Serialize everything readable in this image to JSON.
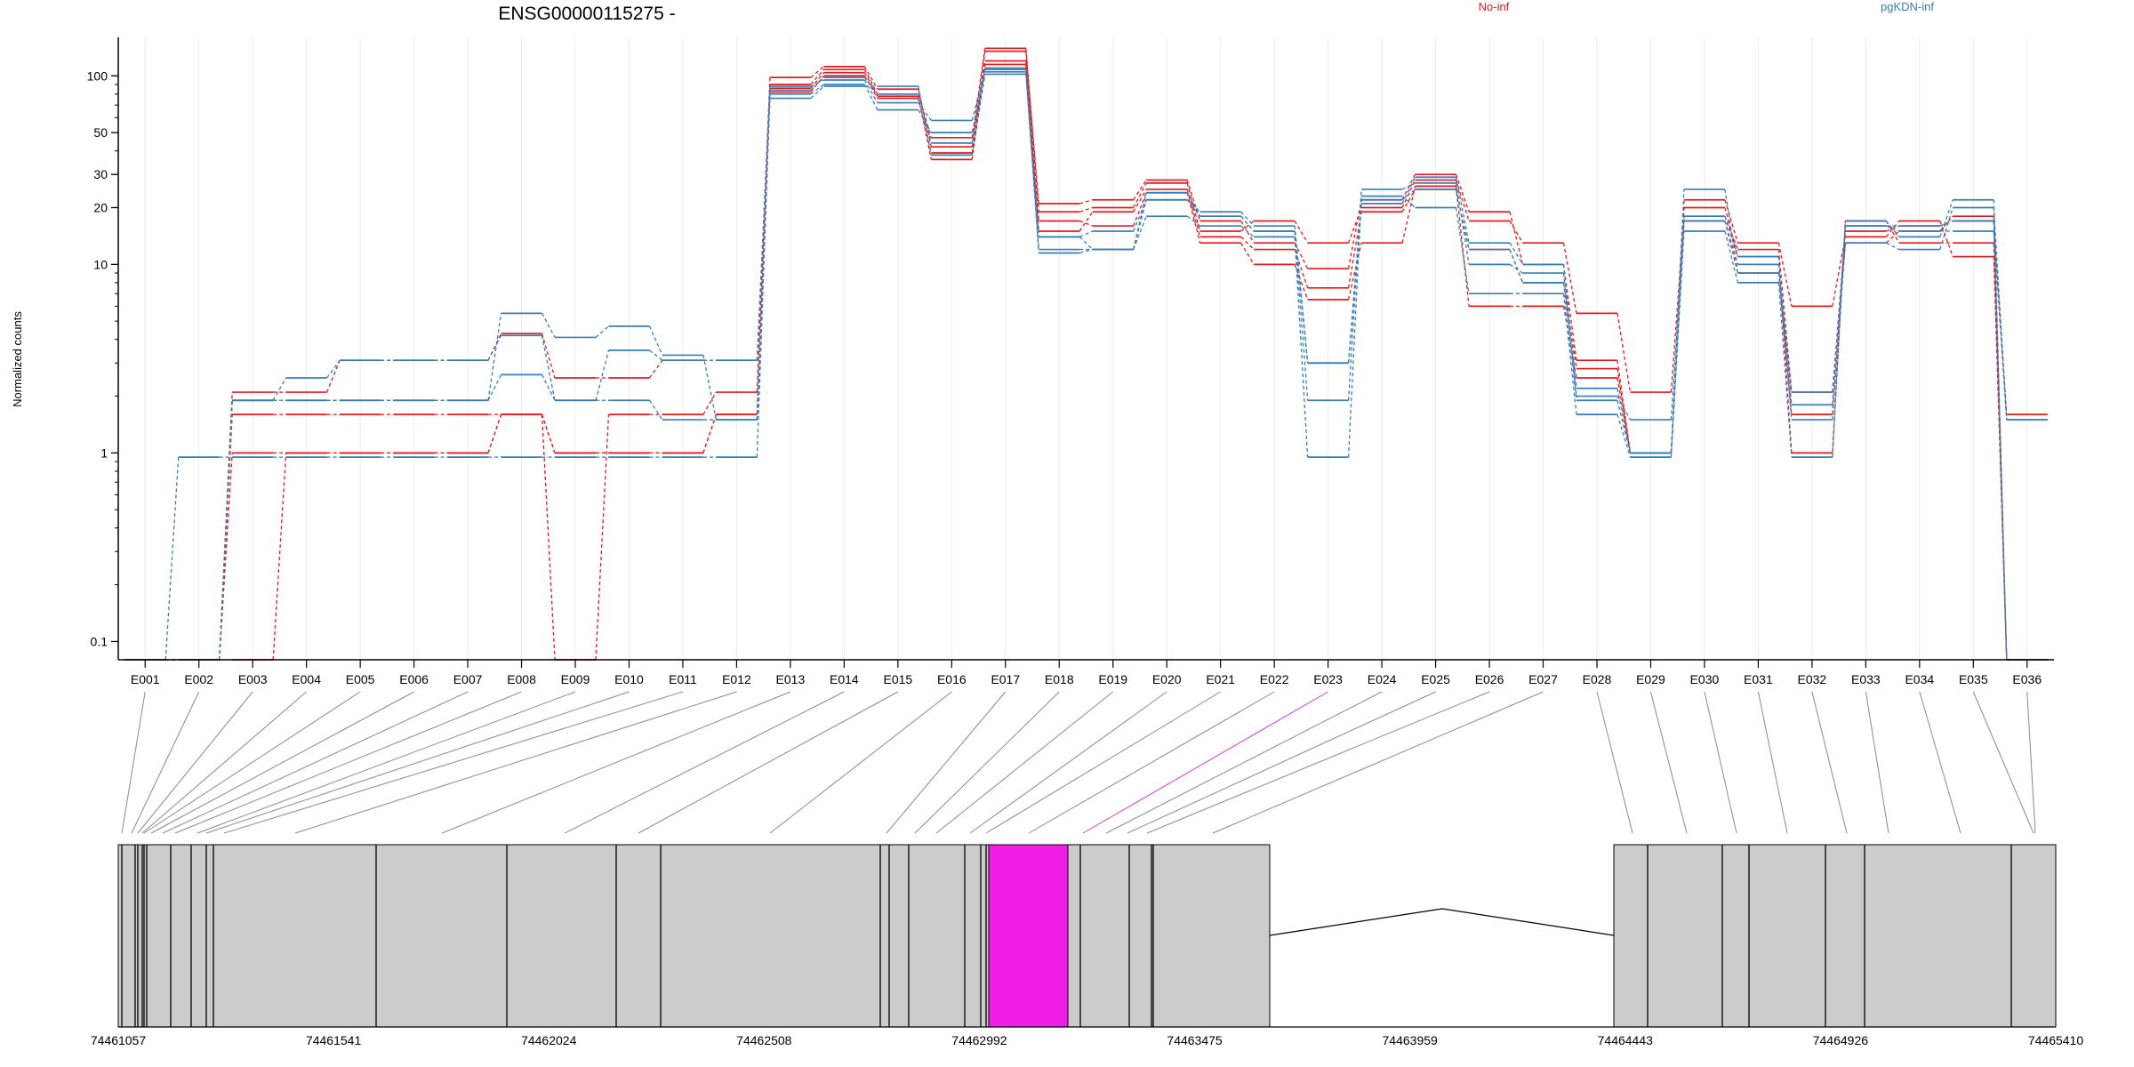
{
  "chart_data": {
    "type": "line",
    "title": "ENSG00000115275 -",
    "ylabel": "Normalized counts",
    "xlabel": "",
    "yscale": "log",
    "ylim": [
      0.08,
      160
    ],
    "yticks": [
      0.1,
      1,
      10,
      20,
      30,
      50,
      100
    ],
    "categories": [
      "E001",
      "E002",
      "E003",
      "E004",
      "E005",
      "E006",
      "E007",
      "E008",
      "E009",
      "E010",
      "E011",
      "E012",
      "E013",
      "E014",
      "E015",
      "E016",
      "E017",
      "E018",
      "E019",
      "E020",
      "E021",
      "E022",
      "E023",
      "E024",
      "E025",
      "E026",
      "E027",
      "E028",
      "E029",
      "E030",
      "E031",
      "E032",
      "E033",
      "E034",
      "E035",
      "E036"
    ],
    "highlighted_exon": "E023",
    "legend": [
      {
        "name": "No-inf",
        "color": "#e41a1c"
      },
      {
        "name": "pgKDN-inf",
        "color": "#377eb8"
      }
    ],
    "series": [
      {
        "group": "No-inf",
        "values": [
          0.08,
          0.08,
          2.1,
          2.1,
          3.1,
          3.1,
          3.1,
          4.3,
          2.5,
          2.5,
          3.1,
          3.1,
          90,
          108,
          80,
          47,
          140,
          19,
          20,
          27,
          15,
          17,
          13,
          20,
          28,
          17,
          13,
          5.5,
          2.1,
          18,
          12,
          2.1,
          15,
          16,
          17,
          1.6
        ]
      },
      {
        "group": "No-inf",
        "values": [
          0.08,
          0.08,
          1.6,
          1.6,
          1.6,
          1.6,
          1.6,
          1.6,
          0.08,
          1.6,
          1.6,
          2.1,
          98,
          112,
          85,
          42,
          135,
          21,
          22,
          28,
          17,
          13,
          9.5,
          22,
          30,
          19,
          10,
          3.1,
          1,
          20,
          11,
          1,
          17,
          13,
          13,
          0.08
        ]
      },
      {
        "group": "No-inf",
        "values": [
          0.08,
          0.08,
          1,
          1,
          1,
          1,
          1,
          1.6,
          1,
          1,
          1,
          1.6,
          82,
          100,
          76,
          39,
          120,
          17,
          16,
          24,
          13,
          10,
          6.5,
          13,
          26,
          6,
          6,
          2.5,
          1,
          22,
          13,
          6,
          14,
          17,
          11,
          0.08
        ]
      },
      {
        "group": "No-inf",
        "values": [
          0.08,
          0.08,
          0.08,
          1,
          1,
          1,
          1,
          1.6,
          1,
          1,
          1,
          1.6,
          86,
          104,
          78,
          36,
          115,
          15,
          19,
          25,
          14,
          12,
          7.5,
          19,
          25,
          12,
          8,
          2.8,
          1,
          17,
          9,
          1.6,
          13,
          15,
          18,
          0.08
        ]
      },
      {
        "group": "pgKDN-inf",
        "values": [
          0.08,
          0.95,
          0.95,
          0.95,
          0.95,
          0.95,
          0.95,
          0.95,
          0.95,
          0.95,
          0.95,
          0.95,
          80,
          90,
          66,
          50,
          105,
          11.5,
          12,
          18,
          16,
          14,
          0.95,
          23,
          20,
          7,
          7,
          1.6,
          0.95,
          15,
          8,
          0.95,
          17,
          14,
          22,
          0.08
        ]
      },
      {
        "group": "pgKDN-inf",
        "values": [
          0.08,
          0.08,
          1.9,
          1.9,
          1.9,
          1.9,
          1.9,
          2.6,
          1.9,
          1.9,
          1.5,
          1.5,
          88,
          95,
          72,
          58,
          108,
          12,
          12,
          24,
          18,
          15,
          1.9,
          25,
          27,
          10,
          9,
          2,
          1.5,
          17,
          10,
          1.5,
          16,
          15,
          15,
          1.5
        ]
      },
      {
        "group": "pgKDN-inf",
        "values": [
          0.08,
          0.08,
          1.9,
          2.5,
          3.1,
          3.1,
          3.1,
          4.2,
          1.9,
          3.5,
          3.1,
          3.1,
          84,
          98,
          80,
          44,
          110,
          14,
          15,
          22,
          19,
          16,
          3,
          21,
          29,
          13,
          10,
          2.2,
          1,
          18,
          11,
          1.8,
          16,
          16,
          17,
          0.08
        ]
      },
      {
        "group": "pgKDN-inf",
        "values": [
          0.08,
          0.08,
          1.9,
          1.9,
          1.9,
          1.9,
          1.9,
          5.5,
          4.1,
          4.7,
          3.3,
          1.5,
          76,
          88,
          88,
          38,
          102,
          14,
          12,
          22,
          18,
          15,
          3,
          22,
          25,
          12,
          8,
          1.9,
          1,
          25,
          9,
          2.1,
          13,
          12,
          20,
          1.5
        ]
      }
    ],
    "genomic_axis": {
      "ticks": [
        "74461057",
        "74461541",
        "74462024",
        "74462508",
        "74462992",
        "74463475",
        "74463959",
        "74464443",
        "74464926",
        "74465410"
      ]
    }
  }
}
